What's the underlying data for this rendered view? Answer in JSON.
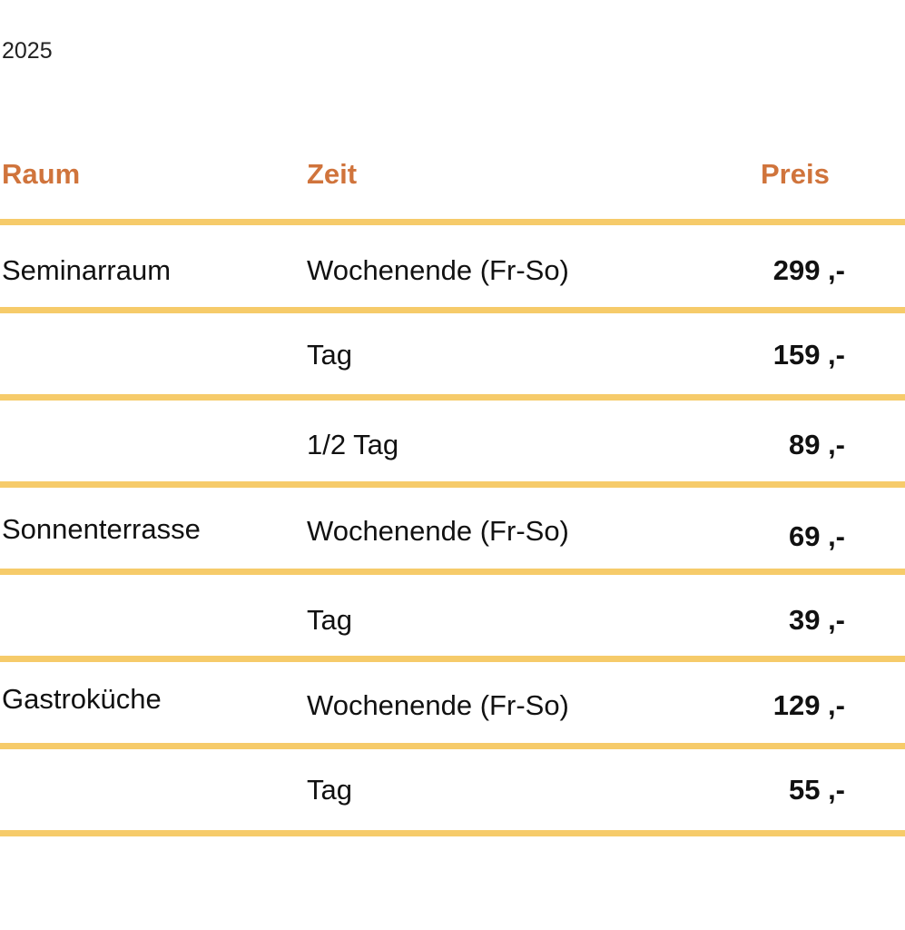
{
  "year": "2025",
  "headers": {
    "raum": "Raum",
    "zeit": "Zeit",
    "preis": "Preis"
  },
  "colors": {
    "header": "#D0743C",
    "divider": "#F6CB6A"
  },
  "rows": [
    {
      "raum": "Seminarraum",
      "zeit": "Wochenende (Fr-So)",
      "preis": "299 ,-"
    },
    {
      "raum": "",
      "zeit": "Tag",
      "preis": "159 ,-"
    },
    {
      "raum": "",
      "zeit": "1/2 Tag",
      "preis": "89 ,-"
    },
    {
      "raum": "Sonnenterrasse",
      "zeit": "Wochenende (Fr-So)",
      "preis": "69 ,-"
    },
    {
      "raum": "",
      "zeit": "Tag",
      "preis": "39 ,-"
    },
    {
      "raum": "Gastroküche",
      "zeit": "Wochenende (Fr-So)",
      "preis": "129 ,-"
    },
    {
      "raum": "",
      "zeit": "Tag",
      "preis": "55 ,-"
    }
  ]
}
